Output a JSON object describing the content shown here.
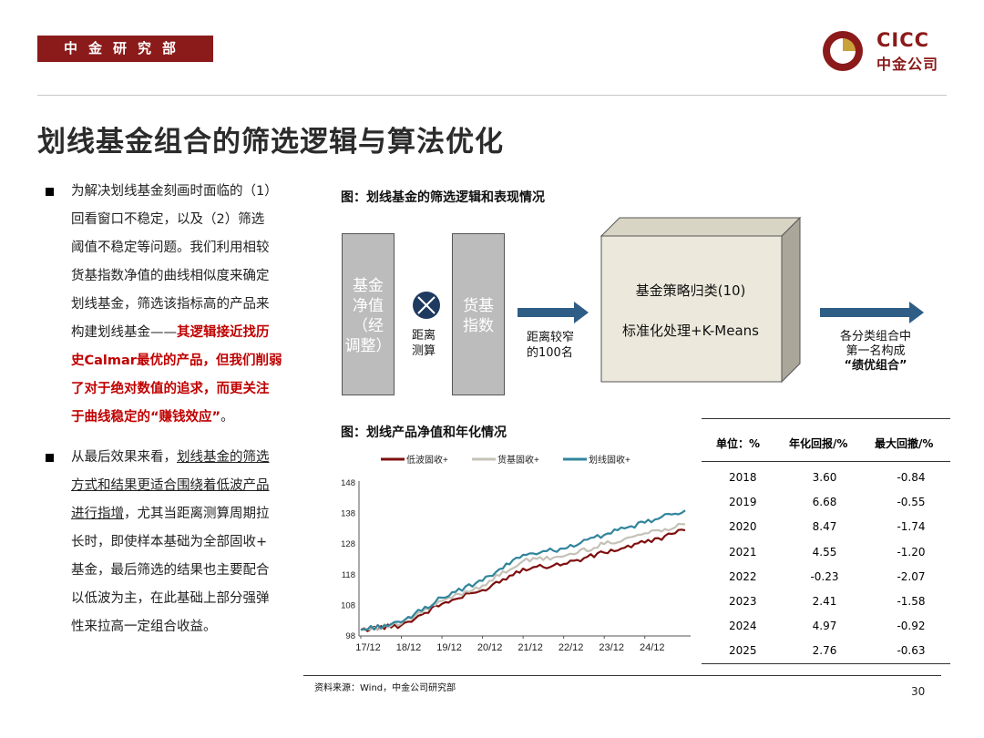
{
  "header": {
    "department": "中金研究部",
    "logo_en": "CICC",
    "logo_cn": "中金公司"
  },
  "title": "划线基金组合的筛选逻辑与算法优化",
  "bullets": [
    {
      "lines": [
        "为解决划线基金刻画时面临的（1）",
        "回看窗口不稳定，以及（2）筛选",
        "阈值不稳定等问题。我们利用相较",
        "货基指数净值的曲线相似度来确定",
        "划线基金，筛选该指标高的产品来"
      ],
      "line6_plain": "构建划线基金——",
      "line6_red": "其逻辑接近找历",
      "red_lines": [
        "史Calmar最优的产品，但我们削弱",
        "了对于绝对数值的追求，而更关注"
      ],
      "last_red": "于曲线稳定的“赚钱效应”",
      "last_plain": "。"
    },
    {
      "line1_plain": "从最后效果来看，",
      "line1_ul": "划线基金的筛选",
      "ul_lines": [
        "方式和结果更适合围绕着低波产品",
        "进行指增"
      ],
      "line3_tail": "，尤其当距离测算周期拉",
      "rest_lines": [
        "长时，即使样本基础为全部固收+",
        "基金，最后筛选的结果也主要配合",
        "以低波为主，在此基础上部分强弹",
        "性来拉高一定组合收益。"
      ]
    }
  ],
  "figure1": {
    "title": "图：划线基金的筛选逻辑和表现情况",
    "box1": [
      "基金",
      "净值",
      "（经",
      "调整）"
    ],
    "box2": [
      "货基",
      "指数"
    ],
    "op_label": [
      "距离",
      "测算"
    ],
    "arrow1_label": [
      "距离较窄",
      "的100名"
    ],
    "cube_line1": "基金策略归类(10)",
    "cube_line2": "标准化处理+K-Means",
    "result_lines": [
      "各分类组合中",
      "第一名构成"
    ],
    "result_bold": "“绩优组合”"
  },
  "figure2": {
    "title": "图：划线产品净值和年化情况"
  },
  "chart_data": {
    "type": "line",
    "title": "",
    "xlabel": "",
    "ylabel": "",
    "ylim": [
      98,
      148
    ],
    "yticks": [
      98,
      108,
      118,
      128,
      138,
      148
    ],
    "x": [
      "17/12",
      "18/12",
      "19/12",
      "20/12",
      "21/12",
      "22/12",
      "23/12",
      "24/12",
      "25/06"
    ],
    "xtick_labels": [
      "17/12",
      "18/12",
      "19/12",
      "20/12",
      "21/12",
      "22/12",
      "23/12",
      "24/12"
    ],
    "legend_position": "top",
    "series": [
      {
        "name": "低波固收+",
        "color": "#7f0f0f",
        "values": [
          100,
          101.5,
          108.5,
          113,
          120,
          121.5,
          125.2,
          128.5,
          132.5
        ]
      },
      {
        "name": "货基固收+",
        "color": "#c4c2b8",
        "values": [
          100,
          102,
          109.5,
          114.5,
          122.5,
          124,
          128,
          131.5,
          134.5
        ]
      },
      {
        "name": "划线固收+",
        "color": "#31859c",
        "values": [
          100,
          102.5,
          110.5,
          116,
          124.5,
          126.5,
          131,
          135,
          139
        ]
      }
    ]
  },
  "table": {
    "unit_label": "单位：%",
    "col_return": "年化回报/%",
    "col_drawdown": "最大回撤/%",
    "rows": [
      {
        "year": "2018",
        "ret": "3.60",
        "dd": "-0.84"
      },
      {
        "year": "2019",
        "ret": "6.68",
        "dd": "-0.55"
      },
      {
        "year": "2020",
        "ret": "8.47",
        "dd": "-1.74"
      },
      {
        "year": "2021",
        "ret": "4.55",
        "dd": "-1.20"
      },
      {
        "year": "2022",
        "ret": "-0.23",
        "dd": "-2.07"
      },
      {
        "year": "2023",
        "ret": "2.41",
        "dd": "-1.58"
      },
      {
        "year": "2024",
        "ret": "4.97",
        "dd": "-0.92"
      },
      {
        "year": "2025",
        "ret": "2.76",
        "dd": "-0.63"
      }
    ]
  },
  "footer": {
    "source": "资料来源：Wind，中金公司研究部",
    "page": "30"
  },
  "colors": {
    "brand_red": "#8b1a1a",
    "text_red": "#c00000",
    "arrow_blue": "#2e5d85"
  }
}
